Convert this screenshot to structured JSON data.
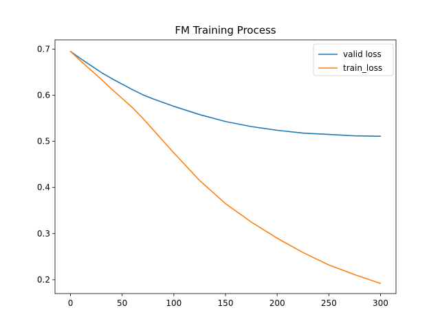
{
  "chart_data": {
    "type": "line",
    "title": "FM Training Process",
    "xlabel": "",
    "ylabel": "",
    "xlim": [
      -15,
      315
    ],
    "ylim": [
      0.17,
      0.72
    ],
    "xticks": [
      0,
      50,
      100,
      150,
      200,
      250,
      300
    ],
    "yticks": [
      0.2,
      0.3,
      0.4,
      0.5,
      0.6,
      0.7
    ],
    "grid": false,
    "legend": "top-right",
    "series": [
      {
        "name": "valid loss",
        "color": "#1f77b4",
        "x": [
          0,
          10,
          20,
          30,
          40,
          50,
          60,
          70,
          80,
          90,
          100,
          125,
          150,
          175,
          200,
          225,
          250,
          275,
          300
        ],
        "y": [
          0.695,
          0.679,
          0.664,
          0.649,
          0.636,
          0.624,
          0.612,
          0.601,
          0.592,
          0.584,
          0.576,
          0.558,
          0.543,
          0.532,
          0.524,
          0.518,
          0.515,
          0.512,
          0.511
        ]
      },
      {
        "name": "train_loss",
        "color": "#ff7f0e",
        "x": [
          0,
          10,
          20,
          30,
          40,
          50,
          60,
          70,
          80,
          90,
          100,
          125,
          150,
          175,
          200,
          225,
          250,
          275,
          300
        ],
        "y": [
          0.695,
          0.674,
          0.654,
          0.634,
          0.613,
          0.593,
          0.573,
          0.55,
          0.525,
          0.5,
          0.475,
          0.415,
          0.365,
          0.325,
          0.29,
          0.259,
          0.232,
          0.211,
          0.192
        ]
      }
    ]
  }
}
